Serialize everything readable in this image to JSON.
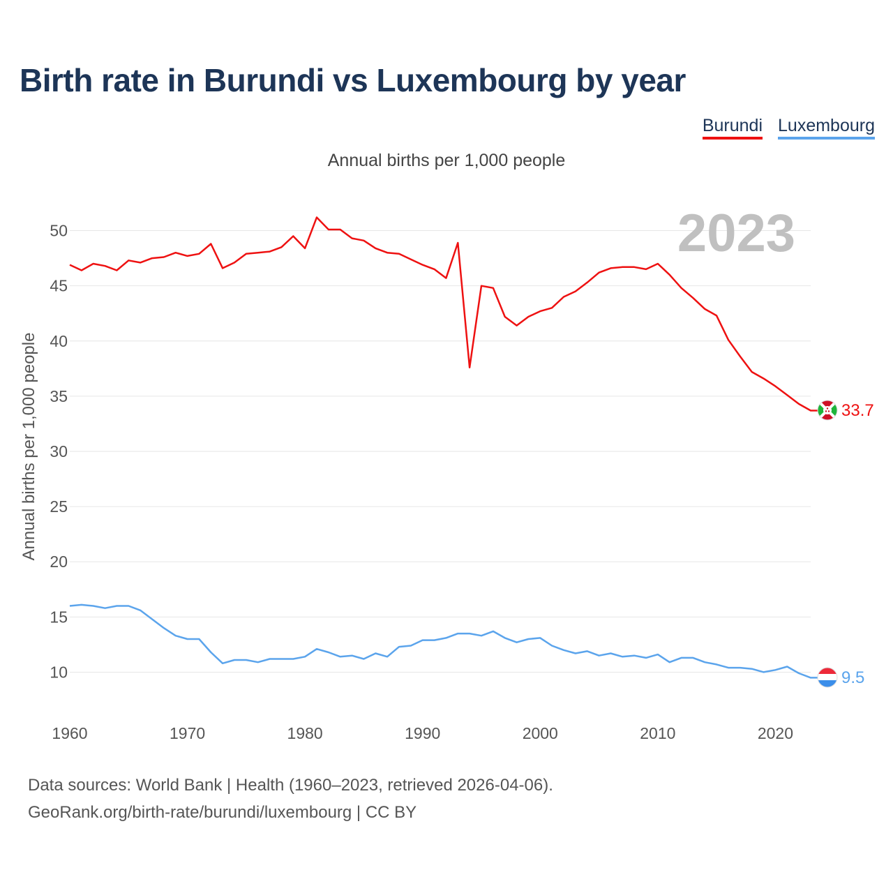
{
  "title": "Birth rate in Burundi vs Luxembourg by year",
  "subtitle": "Annual births per 1,000 people",
  "legend": {
    "burundi": "Burundi",
    "luxembourg": "Luxembourg"
  },
  "footer": {
    "line1": "Data sources: World Bank | Health (1960–2023, retrieved 2026-04-06).",
    "line2": "GeoRank.org/birth-rate/burundi/luxembourg | CC BY"
  },
  "colors": {
    "burundi": "#ee1111",
    "luxembourg": "#5ba4ec",
    "grid": "#e6e6e6",
    "year": "#c0c0c0"
  },
  "chart_data": {
    "type": "line",
    "year_label": "2023",
    "ylabel": "Annual births per 1,000 people",
    "xlabel": "",
    "xlim": [
      1960,
      2023
    ],
    "ylim": [
      7.5,
      52.5
    ],
    "x_ticks": [
      1960,
      1970,
      1980,
      1990,
      2000,
      2010,
      2020
    ],
    "y_ticks": [
      10,
      15,
      20,
      25,
      30,
      35,
      40,
      45,
      50
    ],
    "grid": true,
    "legend_position": "top-right",
    "series": [
      {
        "name": "Burundi",
        "key": "burundi",
        "end_label": "33.7",
        "flag": "burundi-flag",
        "start_year": 1960,
        "values": [
          46.9,
          46.4,
          47.0,
          46.8,
          46.4,
          47.3,
          47.1,
          47.5,
          47.6,
          48.0,
          47.7,
          47.9,
          48.8,
          46.6,
          47.1,
          47.9,
          48.0,
          48.1,
          48.5,
          49.5,
          48.4,
          51.2,
          50.1,
          50.1,
          49.3,
          49.1,
          48.4,
          48.0,
          47.9,
          47.4,
          46.9,
          46.5,
          45.7,
          48.9,
          37.6,
          45.0,
          44.8,
          42.2,
          41.4,
          42.2,
          42.7,
          43.0,
          44.0,
          44.5,
          45.3,
          46.2,
          46.6,
          46.7,
          46.7,
          46.5,
          47.0,
          46.0,
          44.8,
          43.9,
          42.9,
          42.3,
          40.1,
          38.6,
          37.2,
          36.6,
          35.9,
          35.1,
          34.3,
          33.7
        ]
      },
      {
        "name": "Luxembourg",
        "key": "luxembourg",
        "end_label": "9.5",
        "flag": "luxembourg-flag",
        "start_year": 1960,
        "values": [
          16.0,
          16.1,
          16.0,
          15.8,
          16.0,
          16.0,
          15.6,
          14.8,
          14.0,
          13.3,
          13.0,
          13.0,
          11.8,
          10.8,
          11.1,
          11.1,
          10.9,
          11.2,
          11.2,
          11.2,
          11.4,
          12.1,
          11.8,
          11.4,
          11.5,
          11.2,
          11.7,
          11.4,
          12.3,
          12.4,
          12.9,
          12.9,
          13.1,
          13.5,
          13.5,
          13.3,
          13.7,
          13.1,
          12.7,
          13.0,
          13.1,
          12.4,
          12.0,
          11.7,
          11.9,
          11.5,
          11.7,
          11.4,
          11.5,
          11.3,
          11.6,
          10.9,
          11.3,
          11.3,
          10.9,
          10.7,
          10.4,
          10.4,
          10.3,
          10.0,
          10.2,
          10.5,
          9.9,
          9.5
        ]
      }
    ]
  }
}
